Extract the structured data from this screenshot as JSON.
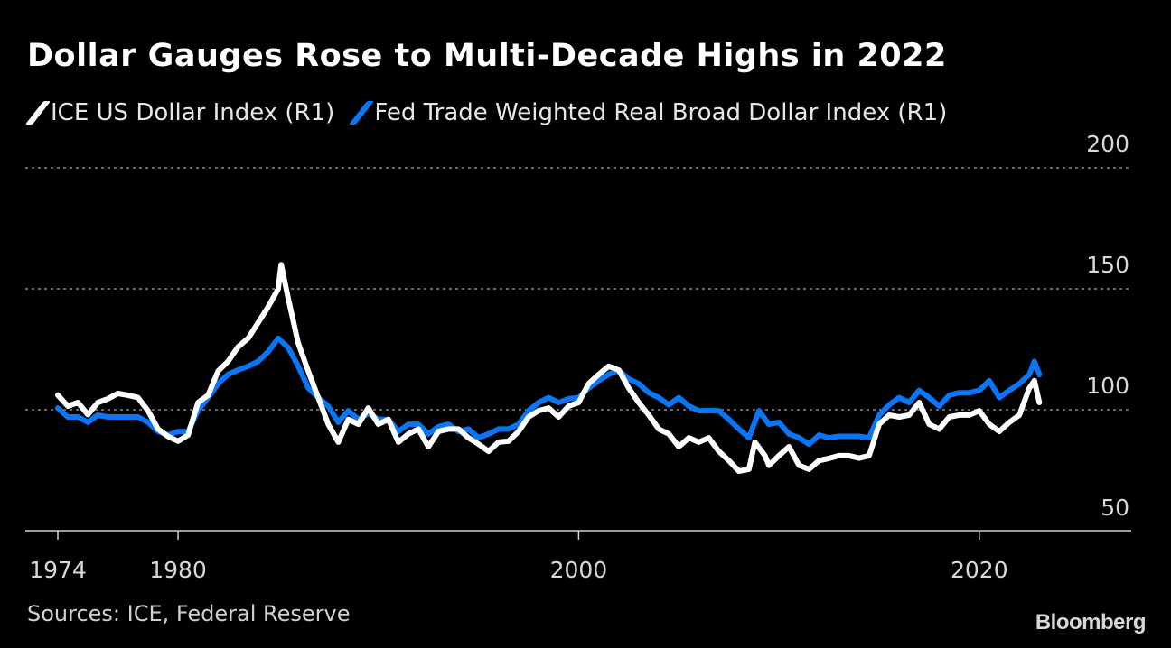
{
  "chart_data": {
    "type": "line",
    "title": "Dollar Gauges Rose to Multi-Decade Highs in 2022",
    "xlabel": "",
    "ylabel": "",
    "xlim": [
      1974,
      2024
    ],
    "ylim": [
      50,
      200
    ],
    "x_ticks": [
      1974,
      1980,
      2000,
      2020
    ],
    "y_ticks": [
      50,
      100,
      150,
      200
    ],
    "grid": "horizontal dotted",
    "legend_position": "top-left",
    "series": [
      {
        "name": "ICE US Dollar Index (R1)",
        "color": "#ffffff",
        "points": [
          [
            1974,
            106
          ],
          [
            1974.5,
            101.5
          ],
          [
            1975,
            103
          ],
          [
            1975.5,
            98
          ],
          [
            1976,
            103
          ],
          [
            1976.5,
            104.5
          ],
          [
            1977,
            106.7
          ],
          [
            1977.5,
            106
          ],
          [
            1978,
            105
          ],
          [
            1978.5,
            99.6
          ],
          [
            1979,
            92
          ],
          [
            1979.5,
            89
          ],
          [
            1980,
            87
          ],
          [
            1980.5,
            89.5
          ],
          [
            1981,
            103
          ],
          [
            1981.5,
            106
          ],
          [
            1982,
            116
          ],
          [
            1982.5,
            120
          ],
          [
            1983,
            126
          ],
          [
            1983.5,
            129.5
          ],
          [
            1984,
            136
          ],
          [
            1984.5,
            142.5
          ],
          [
            1985,
            150
          ],
          [
            1985.15,
            160
          ],
          [
            1985.5,
            146
          ],
          [
            1986,
            127.6
          ],
          [
            1986.5,
            116
          ],
          [
            1987,
            105
          ],
          [
            1987.5,
            94
          ],
          [
            1988,
            86.6
          ],
          [
            1988.5,
            96
          ],
          [
            1989,
            94
          ],
          [
            1989.5,
            100.7
          ],
          [
            1990,
            94
          ],
          [
            1990.5,
            96
          ],
          [
            1991,
            86.6
          ],
          [
            1991.5,
            90
          ],
          [
            1992,
            92
          ],
          [
            1992.5,
            84.7
          ],
          [
            1993,
            91
          ],
          [
            1993.5,
            92
          ],
          [
            1994,
            92
          ],
          [
            1994.5,
            88.4
          ],
          [
            1995,
            85.8
          ],
          [
            1995.5,
            82.8
          ],
          [
            1996,
            86.6
          ],
          [
            1996.5,
            87
          ],
          [
            1997,
            91
          ],
          [
            1997.5,
            97
          ],
          [
            1998,
            99.6
          ],
          [
            1998.5,
            100.7
          ],
          [
            1999,
            97
          ],
          [
            1999.5,
            101.5
          ],
          [
            2000,
            103
          ],
          [
            2000.5,
            110.8
          ],
          [
            2001,
            114.6
          ],
          [
            2001.5,
            118
          ],
          [
            2002,
            116.4
          ],
          [
            2002.5,
            109
          ],
          [
            2003,
            103
          ],
          [
            2003.5,
            97.8
          ],
          [
            2004,
            92
          ],
          [
            2004.5,
            90
          ],
          [
            2005,
            84.7
          ],
          [
            2005.5,
            88.4
          ],
          [
            2006,
            86.6
          ],
          [
            2006.5,
            88.4
          ],
          [
            2007,
            82.8
          ],
          [
            2007.5,
            79
          ],
          [
            2008,
            74.6
          ],
          [
            2008.5,
            75.4
          ],
          [
            2008.8,
            86.6
          ],
          [
            2009.3,
            81
          ],
          [
            2009.5,
            77
          ],
          [
            2010,
            81
          ],
          [
            2010.5,
            84.7
          ],
          [
            2011,
            77
          ],
          [
            2011.5,
            75.4
          ],
          [
            2012,
            79
          ],
          [
            2012.5,
            79.9
          ],
          [
            2013,
            81
          ],
          [
            2013.5,
            81
          ],
          [
            2014,
            80
          ],
          [
            2014.5,
            81
          ],
          [
            2015,
            94
          ],
          [
            2015.5,
            97.8
          ],
          [
            2016,
            97
          ],
          [
            2016.5,
            97.8
          ],
          [
            2017,
            103
          ],
          [
            2017.5,
            94
          ],
          [
            2018,
            92
          ],
          [
            2018.5,
            97
          ],
          [
            2019,
            97.8
          ],
          [
            2019.5,
            97.8
          ],
          [
            2020,
            99.6
          ],
          [
            2020.5,
            94
          ],
          [
            2021,
            91
          ],
          [
            2021.5,
            94.8
          ],
          [
            2022,
            97.8
          ],
          [
            2022.5,
            109
          ],
          [
            2022.75,
            112
          ],
          [
            2023,
            103
          ]
        ]
      },
      {
        "name": "Fed Trade Weighted Real Broad Dollar Index (R1)",
        "color": "#0a76f5",
        "points": [
          [
            1974,
            100.7
          ],
          [
            1974.5,
            97
          ],
          [
            1975,
            97
          ],
          [
            1975.5,
            94.8
          ],
          [
            1976,
            97.8
          ],
          [
            1976.5,
            97
          ],
          [
            1977,
            97
          ],
          [
            1977.5,
            97
          ],
          [
            1978,
            97
          ],
          [
            1978.5,
            94.8
          ],
          [
            1979,
            91
          ],
          [
            1979.5,
            89.5
          ],
          [
            1980,
            91
          ],
          [
            1980.5,
            91
          ],
          [
            1981,
            99.6
          ],
          [
            1981.5,
            105
          ],
          [
            1982,
            110.8
          ],
          [
            1982.5,
            114.6
          ],
          [
            1983,
            116.4
          ],
          [
            1983.5,
            118
          ],
          [
            1984,
            120
          ],
          [
            1984.5,
            124
          ],
          [
            1985,
            129.5
          ],
          [
            1985.5,
            125.7
          ],
          [
            1986,
            118
          ],
          [
            1986.5,
            109
          ],
          [
            1987,
            105
          ],
          [
            1987.5,
            101.5
          ],
          [
            1988,
            94.8
          ],
          [
            1988.5,
            99.6
          ],
          [
            1989,
            96
          ],
          [
            1989.5,
            98.5
          ],
          [
            1990,
            96
          ],
          [
            1990.5,
            96
          ],
          [
            1991,
            91
          ],
          [
            1991.5,
            94
          ],
          [
            1992,
            94
          ],
          [
            1992.5,
            90
          ],
          [
            1993,
            93
          ],
          [
            1993.5,
            94
          ],
          [
            1994,
            91
          ],
          [
            1994.5,
            92
          ],
          [
            1995,
            88.4
          ],
          [
            1995.5,
            90
          ],
          [
            1996,
            92
          ],
          [
            1996.5,
            92
          ],
          [
            1997,
            94
          ],
          [
            1997.5,
            99.6
          ],
          [
            1998,
            103
          ],
          [
            1998.5,
            105
          ],
          [
            1999,
            103
          ],
          [
            1999.5,
            104.5
          ],
          [
            2000,
            105
          ],
          [
            2000.5,
            109
          ],
          [
            2001,
            112
          ],
          [
            2001.5,
            114.6
          ],
          [
            2002,
            116.4
          ],
          [
            2002.5,
            112.7
          ],
          [
            2003,
            110.8
          ],
          [
            2003.5,
            107
          ],
          [
            2004,
            105
          ],
          [
            2004.5,
            102
          ],
          [
            2005,
            105
          ],
          [
            2005.5,
            101.5
          ],
          [
            2006,
            99.6
          ],
          [
            2006.5,
            99.6
          ],
          [
            2007,
            99.6
          ],
          [
            2007.5,
            96
          ],
          [
            2008,
            92
          ],
          [
            2008.5,
            88.4
          ],
          [
            2009,
            99.6
          ],
          [
            2009.5,
            94
          ],
          [
            2010,
            94.8
          ],
          [
            2010.5,
            90
          ],
          [
            2011,
            88.4
          ],
          [
            2011.5,
            85.8
          ],
          [
            2012,
            89.5
          ],
          [
            2012.5,
            88.4
          ],
          [
            2013,
            89
          ],
          [
            2013.5,
            89
          ],
          [
            2014,
            89
          ],
          [
            2014.5,
            88.4
          ],
          [
            2015,
            97.8
          ],
          [
            2015.5,
            102
          ],
          [
            2016,
            105
          ],
          [
            2016.5,
            103
          ],
          [
            2017,
            108
          ],
          [
            2017.5,
            105
          ],
          [
            2018,
            101.5
          ],
          [
            2018.5,
            106
          ],
          [
            2019,
            107
          ],
          [
            2019.5,
            107
          ],
          [
            2020,
            108
          ],
          [
            2020.5,
            112
          ],
          [
            2021,
            105
          ],
          [
            2021.5,
            108
          ],
          [
            2022,
            110.8
          ],
          [
            2022.5,
            114.6
          ],
          [
            2022.75,
            120
          ],
          [
            2023,
            114.6
          ]
        ]
      }
    ],
    "source": "Sources: ICE, Federal Reserve"
  },
  "branding": {
    "logo": "Bloomberg"
  }
}
